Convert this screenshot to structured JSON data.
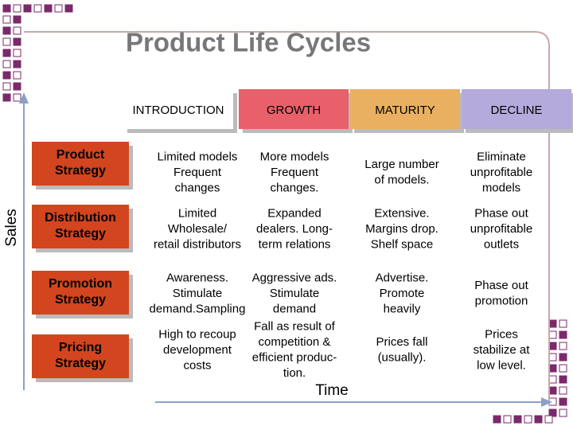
{
  "title": "Product Life Cycles",
  "y_axis_label": "Sales",
  "x_axis_label": "Time",
  "columns": [
    "INTRODUCTION",
    "GROWTH",
    "MATURITY",
    "DECLINE"
  ],
  "rows": [
    {
      "label": [
        "Product",
        "Strategy"
      ],
      "cells": [
        [
          "Limited models",
          "Frequent",
          "changes"
        ],
        [
          "More models",
          "Frequent",
          "changes."
        ],
        [
          "Large number",
          "of models."
        ],
        [
          "Eliminate",
          "unprofitable",
          "models"
        ]
      ]
    },
    {
      "label": [
        "Distribution",
        "Strategy"
      ],
      "cells": [
        [
          "Limited",
          "Wholesale/",
          "retail distributors"
        ],
        [
          "Expanded",
          "dealers. Long-",
          "term relations"
        ],
        [
          "Extensive.",
          "Margins drop.",
          "Shelf space"
        ],
        [
          "Phase out",
          "unprofitable",
          "outlets"
        ]
      ]
    },
    {
      "label": [
        "Promotion",
        "Strategy"
      ],
      "cells": [
        [
          "Awareness.",
          "Stimulate",
          "demand.Sampling"
        ],
        [
          "Aggressive ads.",
          "Stimulate",
          "demand"
        ],
        [
          "Advertise.",
          "Promote",
          "heavily"
        ],
        [
          "Phase out",
          "promotion"
        ]
      ]
    },
    {
      "label": [
        "Pricing",
        "Strategy"
      ],
      "cells": [
        [
          "High to recoup",
          "development",
          "costs"
        ],
        [
          "Fall as result of",
          "competition &",
          "efficient produc-",
          "tion."
        ],
        [
          "Prices fall",
          "(usually)."
        ],
        [
          "Prices",
          "stabilize at",
          "low level."
        ]
      ]
    }
  ]
}
